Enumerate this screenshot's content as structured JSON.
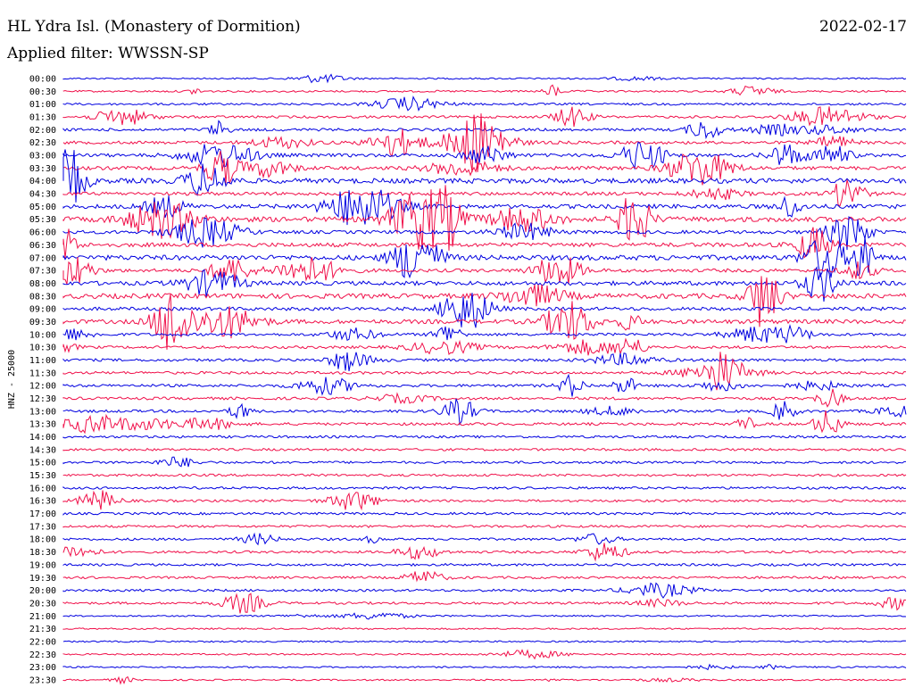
{
  "header": {
    "station": "HL Ydra Isl. (Monastery of Dormition)",
    "date": "2022-02-17",
    "filter": "Applied filter: WWSSN-SP"
  },
  "chart_data": {
    "type": "line",
    "title": "HL Ydra Isl. (Monastery of Dormition)",
    "date": "2022-02-17",
    "filter": "WWSSN-SP",
    "ylabel": "HNZ - 25000",
    "rows": [
      "00:00",
      "00:30",
      "01:00",
      "01:30",
      "02:00",
      "02:30",
      "03:00",
      "03:30",
      "04:00",
      "04:30",
      "05:00",
      "05:30",
      "06:00",
      "06:30",
      "07:00",
      "07:30",
      "08:00",
      "08:30",
      "09:00",
      "09:30",
      "10:00",
      "10:30",
      "11:00",
      "11:30",
      "12:00",
      "12:30",
      "13:00",
      "13:30",
      "14:00",
      "14:30",
      "15:00",
      "15:30",
      "16:00",
      "16:30",
      "17:00",
      "17:30",
      "18:00",
      "18:30",
      "19:00",
      "19:30",
      "20:00",
      "20:30",
      "21:00",
      "21:30",
      "22:00",
      "22:30",
      "23:00",
      "23:30"
    ],
    "colors": {
      "even": "#0000e0",
      "odd": "#f0104a"
    },
    "legend": "none",
    "grid": false
  }
}
